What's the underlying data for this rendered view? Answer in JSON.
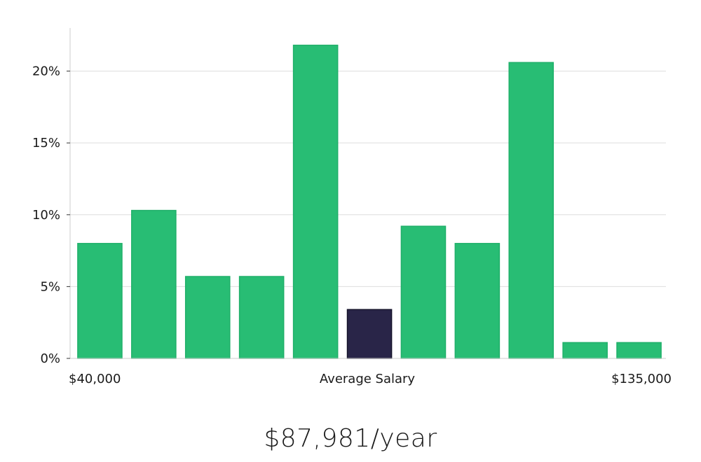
{
  "chart_data": {
    "type": "bar",
    "categories": [
      "",
      "",
      "",
      "",
      "",
      "",
      "",
      "",
      "",
      "",
      ""
    ],
    "values": [
      8.0,
      10.3,
      5.7,
      5.7,
      21.8,
      3.4,
      9.2,
      8.0,
      20.6,
      1.1,
      1.1
    ],
    "highlight_index": 5,
    "x_labels": {
      "left": "$40,000",
      "center": "Average Salary",
      "right": "$135,000"
    },
    "y_ticks": [
      0,
      5,
      10,
      15,
      20
    ],
    "y_tick_labels": [
      "0%",
      "5%",
      "10%",
      "15%",
      "20%"
    ],
    "ylim": [
      0,
      23
    ],
    "grid": true,
    "colors": {
      "bar": "#28bd74",
      "bar_edge": "#20b06a",
      "highlight": "#292548",
      "highlight_edge": "#15132a",
      "grid": "#dddddd",
      "axis": "#cccccc"
    }
  },
  "summary": {
    "average_salary_text": "$87,981/year"
  }
}
